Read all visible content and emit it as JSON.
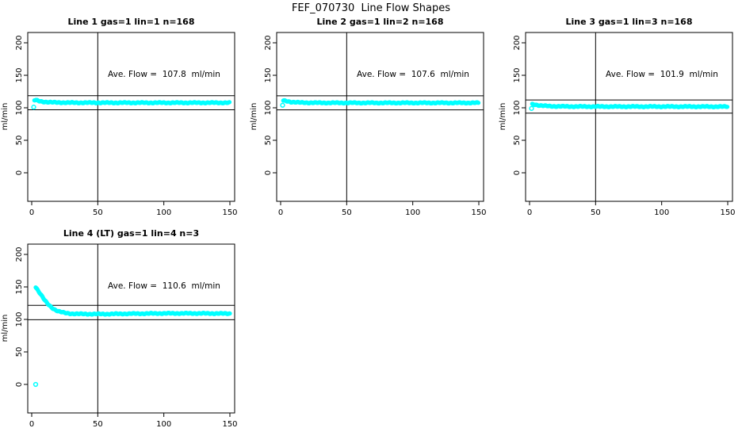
{
  "title": "FEF_070730  Line Flow Shapes",
  "unit_label": "ml/min",
  "accent_color": "#00ffff",
  "chart_data": [
    {
      "type": "scatter",
      "title": "Line 1 gas=1 lin=1 n=168",
      "gas": 1,
      "lin": 1,
      "n": 168,
      "ave_flow": 107.8,
      "annotation": "Ave. Flow =  107.8  ml/min",
      "xlabel": "",
      "ylabel": "ml/min",
      "x_ticks": [
        0,
        50,
        100,
        150
      ],
      "y_ticks": [
        0,
        50,
        100,
        150,
        200
      ],
      "xlim": [
        -4,
        154
      ],
      "ylim": [
        -45,
        220
      ],
      "ref_vline_x": 50,
      "ref_hlines": [
        118.6,
        97.0
      ],
      "point_color": "#00ffff",
      "series": [
        {
          "name": "flow",
          "points": [
            [
              2,
              111.5
            ],
            [
              3,
              112
            ],
            [
              5,
              110.5
            ],
            [
              8,
              109.5
            ],
            [
              12,
              108.8
            ],
            [
              18,
              108.2
            ],
            [
              30,
              107.9
            ],
            [
              60,
              107.8
            ],
            [
              100,
              107.8
            ],
            [
              150,
              107.8
            ]
          ]
        }
      ],
      "isolated_points": [
        [
          1.5,
          101
        ]
      ]
    },
    {
      "type": "scatter",
      "title": "Line 2 gas=1 lin=2 n=168",
      "gas": 1,
      "lin": 2,
      "n": 168,
      "ave_flow": 107.6,
      "annotation": "Ave. Flow =  107.6  ml/min",
      "xlabel": "",
      "ylabel": "ml/min",
      "x_ticks": [
        0,
        50,
        100,
        150
      ],
      "y_ticks": [
        0,
        50,
        100,
        150,
        200
      ],
      "xlim": [
        -4,
        154
      ],
      "ylim": [
        -45,
        220
      ],
      "ref_vline_x": 50,
      "ref_hlines": [
        118.4,
        96.8
      ],
      "point_color": "#00ffff",
      "series": [
        {
          "name": "flow",
          "points": [
            [
              2,
              111
            ],
            [
              4,
              110.5
            ],
            [
              8,
              109
            ],
            [
              15,
              108
            ],
            [
              30,
              107.7
            ],
            [
              60,
              107.6
            ],
            [
              100,
              107.6
            ],
            [
              150,
              107.6
            ]
          ]
        }
      ],
      "isolated_points": [
        [
          1.5,
          104
        ]
      ]
    },
    {
      "type": "scatter",
      "title": "Line 3 gas=1 lin=3 n=168",
      "gas": 1,
      "lin": 3,
      "n": 168,
      "ave_flow": 101.9,
      "annotation": "Ave. Flow =  101.9  ml/min",
      "xlabel": "",
      "ylabel": "ml/min",
      "x_ticks": [
        0,
        50,
        100,
        150
      ],
      "y_ticks": [
        0,
        50,
        100,
        150,
        200
      ],
      "xlim": [
        -4,
        154
      ],
      "ylim": [
        -45,
        220
      ],
      "ref_vline_x": 50,
      "ref_hlines": [
        112.1,
        91.7
      ],
      "point_color": "#00ffff",
      "series": [
        {
          "name": "flow",
          "points": [
            [
              2,
              105.5
            ],
            [
              4,
              105
            ],
            [
              8,
              103.5
            ],
            [
              15,
              102.5
            ],
            [
              30,
              102
            ],
            [
              60,
              101.9
            ],
            [
              100,
              101.9
            ],
            [
              150,
              101.8
            ]
          ]
        }
      ],
      "isolated_points": [
        [
          1.5,
          99
        ]
      ]
    },
    {
      "type": "scatter",
      "title": "Line 4 (LT) gas=1 lin=4 n=3",
      "gas": 1,
      "lin": 4,
      "n": 3,
      "ave_flow": 110.6,
      "annotation": "Ave. Flow =  110.6  ml/min",
      "xlabel": "",
      "ylabel": "ml/min",
      "x_ticks": [
        0,
        50,
        100,
        150
      ],
      "y_ticks": [
        0,
        50,
        100,
        150,
        200
      ],
      "xlim": [
        -4,
        154
      ],
      "ylim": [
        -45,
        220
      ],
      "ref_vline_x": 50,
      "ref_hlines": [
        121.7,
        99.5
      ],
      "point_color": "#00ffff",
      "series": [
        {
          "name": "flow",
          "points": [
            [
              3,
              150
            ],
            [
              4,
              147
            ],
            [
              6,
              141
            ],
            [
              8,
              135
            ],
            [
              10,
              129
            ],
            [
              12,
              124
            ],
            [
              15,
              118.5
            ],
            [
              18,
              114.5
            ],
            [
              21,
              112
            ],
            [
              25,
              110
            ],
            [
              30,
              108.8
            ],
            [
              40,
              108.3
            ],
            [
              55,
              108.3
            ],
            [
              75,
              108.8
            ],
            [
              100,
              109.3
            ],
            [
              125,
              109.3
            ],
            [
              150,
              109
            ]
          ]
        }
      ],
      "isolated_points": [
        [
          3,
          0
        ]
      ]
    }
  ]
}
